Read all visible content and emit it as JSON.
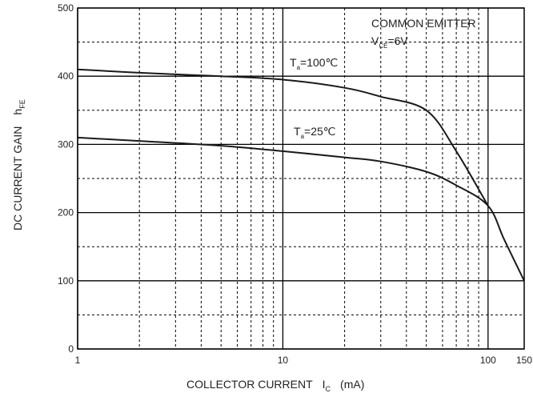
{
  "chart_data": {
    "type": "line",
    "title": "",
    "x_scale": "log",
    "y_scale": "linear",
    "xlim": [
      1,
      150
    ],
    "ylim": [
      0,
      500
    ],
    "x_ticks": [
      1,
      10,
      100,
      150
    ],
    "x_tick_labels": [
      "1",
      "10",
      "100",
      "150"
    ],
    "y_ticks": [
      0,
      100,
      200,
      300,
      400,
      500
    ],
    "y_tick_labels": [
      "0",
      "100",
      "200",
      "300",
      "400",
      "500"
    ],
    "grid": true,
    "xlabel": {
      "main": "COLLECTOR CURRENT",
      "symbol": "I",
      "symbol_sub": "C",
      "unit": "(mA)"
    },
    "ylabel": {
      "main": "DC CURRENT GAIN",
      "symbol": "h",
      "symbol_sub": "FE"
    },
    "annotations": {
      "condition_line1": "COMMON EMITTER",
      "condition_line2_symbol": "V",
      "condition_line2_sub": "CE",
      "condition_line2_value": "=6V"
    },
    "series": [
      {
        "name": "T",
        "name_sub": "a",
        "name_value": "=100℃",
        "x": [
          1,
          2,
          5,
          10,
          20,
          30,
          50,
          70,
          100
        ],
        "y": [
          410,
          405,
          400,
          395,
          383,
          370,
          350,
          290,
          210
        ]
      },
      {
        "name": "T",
        "name_sub": "a",
        "name_value": "=25℃",
        "x": [
          1,
          2,
          5,
          10,
          20,
          30,
          50,
          70,
          100,
          120,
          150
        ],
        "y": [
          310,
          305,
          298,
          290,
          281,
          275,
          260,
          240,
          210,
          160,
          100
        ]
      }
    ]
  }
}
